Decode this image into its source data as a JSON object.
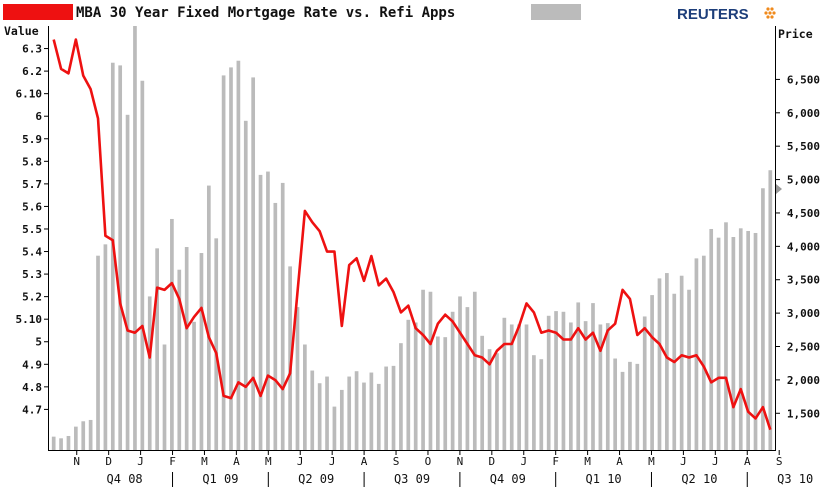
{
  "header": {
    "title": "MBA 30 Year Fixed Mortgage Rate vs. Refi Apps",
    "brand": "REUTERS"
  },
  "colors": {
    "rate_line": "#ee1111",
    "apps_bars": "#bbbbbb",
    "brand": "#1d3e7a",
    "axis": "#000000"
  },
  "chart_data": {
    "type": "bar+line",
    "title": "MBA 30 Year Fixed Mortgage Rate vs. Refi Apps",
    "left_axis": {
      "title": "Value",
      "range": [
        4.52,
        6.4
      ],
      "ticks": [
        {
          "value": 4.7,
          "label": "4.7"
        },
        {
          "value": 4.8,
          "label": "4.8"
        },
        {
          "value": 4.9,
          "label": "4.9"
        },
        {
          "value": 5.0,
          "label": "5"
        },
        {
          "value": 5.1,
          "label": "5.10"
        },
        {
          "value": 5.2,
          "label": "5.2"
        },
        {
          "value": 5.3,
          "label": "5.3"
        },
        {
          "value": 5.4,
          "label": "5.4"
        },
        {
          "value": 5.5,
          "label": "5.5"
        },
        {
          "value": 5.6,
          "label": "5.6"
        },
        {
          "value": 5.7,
          "label": "5.7"
        },
        {
          "value": 5.8,
          "label": "5.8"
        },
        {
          "value": 5.9,
          "label": "5.9"
        },
        {
          "value": 6.0,
          "label": "6"
        },
        {
          "value": 6.1,
          "label": "6.10"
        },
        {
          "value": 6.2,
          "label": "6.2"
        },
        {
          "value": 6.3,
          "label": "6.3"
        }
      ]
    },
    "right_axis": {
      "title": "Price",
      "range": [
        950,
        7300
      ],
      "ticks": [
        {
          "value": 1500,
          "label": "1,500"
        },
        {
          "value": 2000,
          "label": "2,000"
        },
        {
          "value": 2500,
          "label": "2,500"
        },
        {
          "value": 3000,
          "label": "3,000"
        },
        {
          "value": 3500,
          "label": "3,500"
        },
        {
          "value": 4000,
          "label": "4,000"
        },
        {
          "value": 4500,
          "label": "4,500"
        },
        {
          "value": 5000,
          "label": "5,000"
        },
        {
          "value": 5500,
          "label": "5,500"
        },
        {
          "value": 6000,
          "label": "6,000"
        },
        {
          "value": 6500,
          "label": "6,500"
        }
      ]
    },
    "x_axis": {
      "months": [
        "N",
        "D",
        "J",
        "F",
        "M",
        "A",
        "M",
        "J",
        "J",
        "A",
        "S",
        "O",
        "N",
        "D",
        "J",
        "F",
        "M",
        "A",
        "M",
        "J",
        "J",
        "A",
        "S"
      ],
      "quarters": [
        "Q4 08",
        "Q1 09",
        "Q2 09",
        "Q3 09",
        "Q4 09",
        "Q1 10",
        "Q2 10",
        "Q3 10"
      ]
    },
    "series": [
      {
        "name": "MBA 30 Year Fixed Mortgage Rate",
        "type": "line",
        "axis": "left",
        "values": [
          6.34,
          6.21,
          6.19,
          6.34,
          6.18,
          6.12,
          5.99,
          5.47,
          5.45,
          5.17,
          5.05,
          5.04,
          5.07,
          4.93,
          5.24,
          5.23,
          5.26,
          5.19,
          5.06,
          5.11,
          5.15,
          5.02,
          4.95,
          4.76,
          4.75,
          4.82,
          4.8,
          4.84,
          4.76,
          4.85,
          4.83,
          4.79,
          4.86,
          5.22,
          5.58,
          5.53,
          5.49,
          5.4,
          5.4,
          5.07,
          5.34,
          5.37,
          5.27,
          5.38,
          5.25,
          5.28,
          5.22,
          5.13,
          5.16,
          5.06,
          5.03,
          4.99,
          5.08,
          5.12,
          5.09,
          5.04,
          4.99,
          4.94,
          4.93,
          4.9,
          4.96,
          4.99,
          4.99,
          5.07,
          5.17,
          5.13,
          5.04,
          5.05,
          5.04,
          5.01,
          5.01,
          5.06,
          5.01,
          5.04,
          4.96,
          5.05,
          5.08,
          5.23,
          5.19,
          5.03,
          5.06,
          5.02,
          4.99,
          4.93,
          4.91,
          4.94,
          4.93,
          4.94,
          4.89,
          4.82,
          4.84,
          4.84,
          4.71,
          4.79,
          4.69,
          4.66,
          4.71,
          4.61
        ]
      },
      {
        "name": "Refi Apps",
        "type": "bar",
        "axis": "right",
        "values": [
          1150,
          1125,
          1160,
          1300,
          1380,
          1400,
          3860,
          4030,
          6750,
          6710,
          5970,
          7320,
          6480,
          3250,
          3970,
          2530,
          4410,
          3650,
          3990,
          2870,
          3900,
          4910,
          4120,
          6560,
          6680,
          6780,
          5880,
          6530,
          5070,
          5120,
          4650,
          4950,
          3700,
          3090,
          2530,
          2140,
          1950,
          2050,
          1600,
          1850,
          2050,
          2130,
          1960,
          2110,
          1940,
          2200,
          2210,
          2550,
          2900,
          2860,
          3350,
          3320,
          2650,
          2640,
          3020,
          3250,
          3090,
          3320,
          2660,
          2460,
          2400,
          2930,
          2830,
          2830,
          2830,
          2370,
          2310,
          2960,
          3030,
          3020,
          2860,
          3160,
          2880,
          3150,
          2830,
          2850,
          2320,
          2120,
          2270,
          2240,
          2950,
          3270,
          3520,
          3600,
          3290,
          3560,
          3350,
          3820,
          3860,
          4260,
          4130,
          4360,
          4140,
          4270,
          4230,
          4200,
          4870,
          5140
        ]
      }
    ]
  }
}
